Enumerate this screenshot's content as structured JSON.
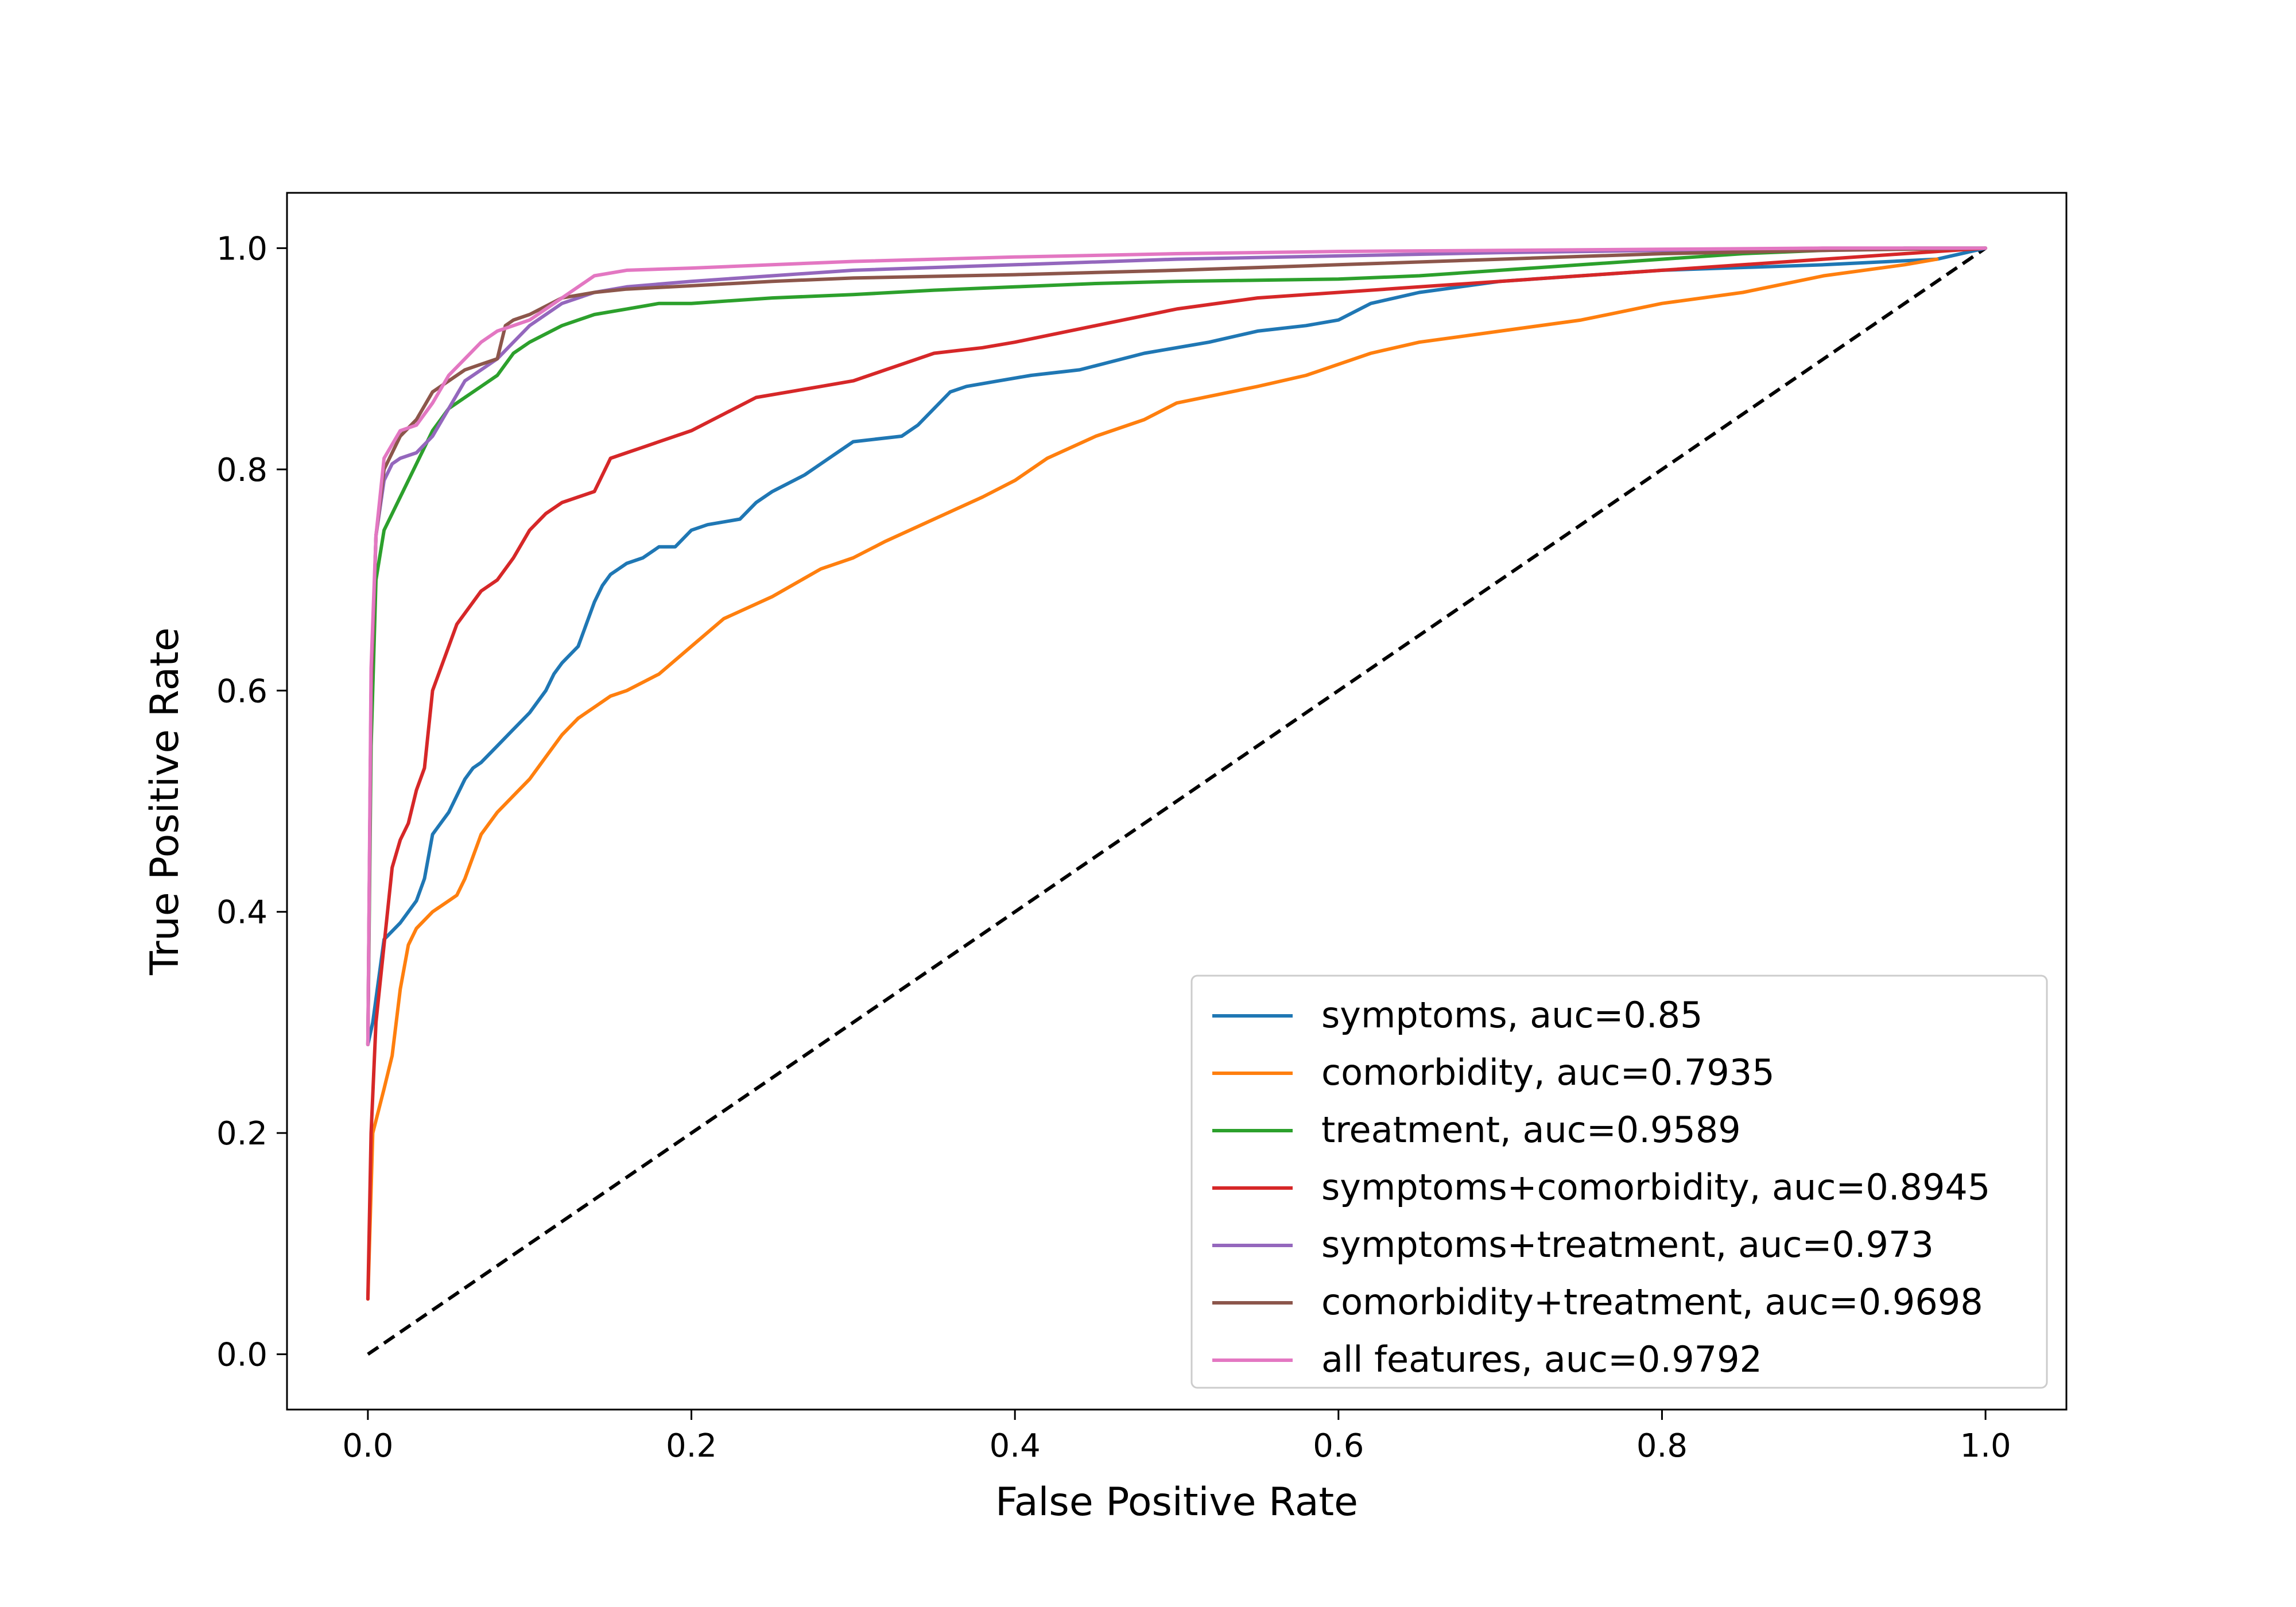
{
  "chart_data": {
    "type": "line",
    "title": "",
    "xlabel": "False Positive Rate",
    "ylabel": "True Positive Rate",
    "xlim": [
      -0.05,
      1.05
    ],
    "ylim": [
      -0.05,
      1.05
    ],
    "xticks": [
      "0.0",
      "0.2",
      "0.4",
      "0.6",
      "0.8",
      "1.0"
    ],
    "yticks": [
      "0.0",
      "0.2",
      "0.4",
      "0.6",
      "0.8",
      "1.0"
    ],
    "xtick_values": [
      0.0,
      0.2,
      0.4,
      0.6,
      0.8,
      1.0
    ],
    "ytick_values": [
      0.0,
      0.2,
      0.4,
      0.6,
      0.8,
      1.0
    ],
    "grid": false,
    "legend_position": "lower-right",
    "reference_line": {
      "x": [
        0,
        1
      ],
      "y": [
        0,
        1
      ],
      "color": "#000000",
      "style": "dashed"
    },
    "series": [
      {
        "name": "symptoms, auc=0.85",
        "color": "#1f77b4",
        "x": [
          0,
          0.003,
          0.01,
          0.02,
          0.03,
          0.035,
          0.04,
          0.045,
          0.05,
          0.06,
          0.065,
          0.07,
          0.08,
          0.09,
          0.1,
          0.105,
          0.11,
          0.115,
          0.12,
          0.13,
          0.14,
          0.145,
          0.15,
          0.155,
          0.16,
          0.17,
          0.18,
          0.19,
          0.2,
          0.21,
          0.23,
          0.24,
          0.25,
          0.27,
          0.28,
          0.29,
          0.3,
          0.33,
          0.34,
          0.35,
          0.36,
          0.37,
          0.39,
          0.41,
          0.44,
          0.48,
          0.52,
          0.55,
          0.58,
          0.6,
          0.62,
          0.65,
          0.7,
          0.8,
          0.9,
          0.97,
          1.0
        ],
        "y": [
          0.28,
          0.3,
          0.375,
          0.39,
          0.41,
          0.43,
          0.47,
          0.48,
          0.49,
          0.52,
          0.53,
          0.535,
          0.55,
          0.565,
          0.58,
          0.59,
          0.6,
          0.615,
          0.625,
          0.64,
          0.68,
          0.695,
          0.705,
          0.71,
          0.715,
          0.72,
          0.73,
          0.73,
          0.745,
          0.75,
          0.755,
          0.77,
          0.78,
          0.795,
          0.805,
          0.815,
          0.825,
          0.83,
          0.84,
          0.855,
          0.87,
          0.875,
          0.88,
          0.885,
          0.89,
          0.905,
          0.915,
          0.925,
          0.93,
          0.935,
          0.95,
          0.96,
          0.97,
          0.98,
          0.985,
          0.99,
          1.0
        ]
      },
      {
        "name": "comorbidity, auc=0.7935",
        "color": "#ff7f0e",
        "x": [
          0,
          0.003,
          0.01,
          0.015,
          0.02,
          0.025,
          0.03,
          0.04,
          0.05,
          0.055,
          0.06,
          0.07,
          0.08,
          0.09,
          0.1,
          0.11,
          0.12,
          0.13,
          0.14,
          0.15,
          0.16,
          0.18,
          0.2,
          0.22,
          0.25,
          0.28,
          0.3,
          0.32,
          0.35,
          0.38,
          0.4,
          0.42,
          0.45,
          0.48,
          0.5,
          0.55,
          0.58,
          0.62,
          0.65,
          0.7,
          0.75,
          0.8,
          0.85,
          0.9,
          0.95,
          0.97
        ],
        "y": [
          0.05,
          0.2,
          0.24,
          0.27,
          0.33,
          0.37,
          0.385,
          0.4,
          0.41,
          0.415,
          0.43,
          0.47,
          0.49,
          0.505,
          0.52,
          0.54,
          0.56,
          0.575,
          0.585,
          0.595,
          0.6,
          0.615,
          0.64,
          0.665,
          0.685,
          0.71,
          0.72,
          0.735,
          0.755,
          0.775,
          0.79,
          0.81,
          0.83,
          0.845,
          0.86,
          0.875,
          0.885,
          0.905,
          0.915,
          0.925,
          0.935,
          0.95,
          0.96,
          0.975,
          0.985,
          0.99
        ]
      },
      {
        "name": "treatment, auc=0.9589",
        "color": "#2ca02c",
        "x": [
          0,
          0.002,
          0.005,
          0.01,
          0.015,
          0.02,
          0.03,
          0.04,
          0.05,
          0.06,
          0.07,
          0.08,
          0.09,
          0.1,
          0.12,
          0.14,
          0.16,
          0.18,
          0.2,
          0.25,
          0.3,
          0.35,
          0.4,
          0.45,
          0.5,
          0.6,
          0.65,
          0.7,
          0.75,
          0.8,
          0.85,
          0.9,
          0.95,
          1.0
        ],
        "y": [
          0.28,
          0.55,
          0.7,
          0.745,
          0.76,
          0.775,
          0.805,
          0.835,
          0.855,
          0.865,
          0.875,
          0.885,
          0.905,
          0.915,
          0.93,
          0.94,
          0.945,
          0.95,
          0.95,
          0.955,
          0.958,
          0.962,
          0.965,
          0.968,
          0.97,
          0.972,
          0.975,
          0.98,
          0.985,
          0.99,
          0.995,
          0.998,
          1.0,
          1.0
        ]
      },
      {
        "name": "symptoms+comorbidity, auc=0.8945",
        "color": "#d62728",
        "x": [
          0,
          0.002,
          0.005,
          0.01,
          0.015,
          0.02,
          0.025,
          0.03,
          0.035,
          0.04,
          0.045,
          0.05,
          0.055,
          0.06,
          0.07,
          0.08,
          0.09,
          0.1,
          0.11,
          0.12,
          0.13,
          0.14,
          0.15,
          0.16,
          0.17,
          0.18,
          0.2,
          0.22,
          0.24,
          0.26,
          0.28,
          0.3,
          0.32,
          0.35,
          0.38,
          0.4,
          0.45,
          0.5,
          0.55,
          0.6,
          0.65,
          0.7,
          0.75,
          0.8,
          0.85,
          0.9,
          0.95,
          1.0
        ],
        "y": [
          0.05,
          0.2,
          0.3,
          0.37,
          0.44,
          0.465,
          0.48,
          0.51,
          0.53,
          0.6,
          0.62,
          0.64,
          0.66,
          0.67,
          0.69,
          0.7,
          0.72,
          0.745,
          0.76,
          0.77,
          0.775,
          0.78,
          0.81,
          0.815,
          0.82,
          0.825,
          0.835,
          0.85,
          0.865,
          0.87,
          0.875,
          0.88,
          0.89,
          0.905,
          0.91,
          0.915,
          0.93,
          0.945,
          0.955,
          0.96,
          0.965,
          0.97,
          0.975,
          0.98,
          0.985,
          0.99,
          0.995,
          1.0
        ]
      },
      {
        "name": "symptoms+treatment, auc=0.973",
        "color": "#9467bd",
        "x": [
          0,
          0.002,
          0.005,
          0.01,
          0.015,
          0.02,
          0.03,
          0.04,
          0.05,
          0.06,
          0.07,
          0.08,
          0.09,
          0.1,
          0.12,
          0.14,
          0.16,
          0.2,
          0.25,
          0.3,
          0.4,
          0.5,
          0.6,
          0.7,
          0.8,
          0.9,
          1.0
        ],
        "y": [
          0.28,
          0.6,
          0.74,
          0.79,
          0.805,
          0.81,
          0.815,
          0.83,
          0.855,
          0.88,
          0.89,
          0.9,
          0.915,
          0.93,
          0.95,
          0.96,
          0.965,
          0.97,
          0.975,
          0.98,
          0.985,
          0.99,
          0.993,
          0.996,
          0.998,
          1.0,
          1.0
        ]
      },
      {
        "name": "comorbidity+treatment, auc=0.9698",
        "color": "#8c564b",
        "x": [
          0,
          0.002,
          0.005,
          0.01,
          0.02,
          0.03,
          0.04,
          0.05,
          0.06,
          0.07,
          0.08,
          0.085,
          0.09,
          0.1,
          0.12,
          0.14,
          0.16,
          0.2,
          0.25,
          0.3,
          0.4,
          0.5,
          0.6,
          0.7,
          0.8,
          0.9,
          1.0
        ],
        "y": [
          0.28,
          0.6,
          0.74,
          0.8,
          0.83,
          0.845,
          0.87,
          0.88,
          0.89,
          0.895,
          0.9,
          0.93,
          0.935,
          0.94,
          0.955,
          0.96,
          0.963,
          0.966,
          0.97,
          0.973,
          0.976,
          0.98,
          0.985,
          0.99,
          0.995,
          0.998,
          1.0
        ]
      },
      {
        "name": "all features, auc=0.9792",
        "color": "#e377c2",
        "x": [
          0,
          0.002,
          0.005,
          0.01,
          0.02,
          0.03,
          0.04,
          0.05,
          0.06,
          0.07,
          0.08,
          0.09,
          0.1,
          0.12,
          0.14,
          0.16,
          0.2,
          0.25,
          0.3,
          0.4,
          0.5,
          0.6,
          0.7,
          0.8,
          0.9,
          1.0
        ],
        "y": [
          0.28,
          0.62,
          0.74,
          0.81,
          0.835,
          0.84,
          0.86,
          0.885,
          0.9,
          0.915,
          0.925,
          0.93,
          0.935,
          0.955,
          0.975,
          0.98,
          0.982,
          0.985,
          0.988,
          0.992,
          0.995,
          0.997,
          0.998,
          0.999,
          1.0,
          1.0
        ]
      }
    ]
  }
}
